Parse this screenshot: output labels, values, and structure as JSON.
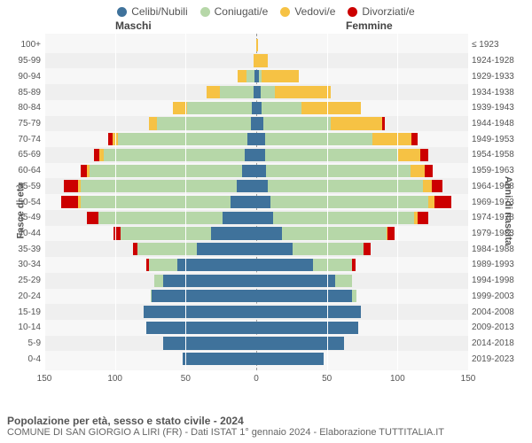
{
  "legend": {
    "items": [
      {
        "label": "Celibi/Nubili",
        "color": "#3f729b"
      },
      {
        "label": "Coniugati/e",
        "color": "#b6d7a8"
      },
      {
        "label": "Vedovi/e",
        "color": "#f6c244"
      },
      {
        "label": "Divorziati/e",
        "color": "#cc0000"
      }
    ]
  },
  "headers": {
    "male": "Maschi",
    "female": "Femmine"
  },
  "axis_labels": {
    "left": "Fasce di età",
    "right": "Anni di nascita"
  },
  "footer": {
    "title": "Popolazione per età, sesso e stato civile - 2024",
    "sub": "COMUNE DI SAN GIORGIO A LIRI (FR) - Dati ISTAT 1° gennaio 2024 - Elaborazione TUTTITALIA.IT"
  },
  "xaxis": {
    "max": 150,
    "ticks": [
      150,
      100,
      50,
      0,
      50,
      100,
      150
    ]
  },
  "colors": {
    "plot_bg": "#f7f7f7",
    "band_bg": "#efefef",
    "grid": "#ffffff",
    "centerline": "#999999",
    "text": "#555555"
  },
  "series_colors": {
    "single": "#3f729b",
    "married": "#b6d7a8",
    "widowed": "#f6c244",
    "divorced": "#cc0000"
  },
  "rows": [
    {
      "age": "100+",
      "year": "≤ 1923",
      "m": {
        "single": 0,
        "married": 0,
        "widowed": 0,
        "divorced": 0
      },
      "f": {
        "single": 0,
        "married": 0,
        "widowed": 1,
        "divorced": 0
      }
    },
    {
      "age": "95-99",
      "year": "1924-1928",
      "m": {
        "single": 0,
        "married": 0,
        "widowed": 2,
        "divorced": 0
      },
      "f": {
        "single": 0,
        "married": 0,
        "widowed": 8,
        "divorced": 0
      }
    },
    {
      "age": "90-94",
      "year": "1929-1933",
      "m": {
        "single": 1,
        "married": 6,
        "widowed": 6,
        "divorced": 0
      },
      "f": {
        "single": 2,
        "married": 2,
        "widowed": 26,
        "divorced": 0
      }
    },
    {
      "age": "85-89",
      "year": "1934-1938",
      "m": {
        "single": 2,
        "married": 24,
        "widowed": 9,
        "divorced": 0
      },
      "f": {
        "single": 3,
        "married": 10,
        "widowed": 40,
        "divorced": 0
      }
    },
    {
      "age": "80-84",
      "year": "1939-1943",
      "m": {
        "single": 3,
        "married": 46,
        "widowed": 10,
        "divorced": 0
      },
      "f": {
        "single": 4,
        "married": 28,
        "widowed": 42,
        "divorced": 0
      }
    },
    {
      "age": "75-79",
      "year": "1944-1948",
      "m": {
        "single": 4,
        "married": 66,
        "widowed": 6,
        "divorced": 0
      },
      "f": {
        "single": 5,
        "married": 48,
        "widowed": 36,
        "divorced": 2
      }
    },
    {
      "age": "70-74",
      "year": "1949-1953",
      "m": {
        "single": 6,
        "married": 92,
        "widowed": 4,
        "divorced": 3
      },
      "f": {
        "single": 6,
        "married": 76,
        "widowed": 28,
        "divorced": 4
      }
    },
    {
      "age": "65-69",
      "year": "1954-1958",
      "m": {
        "single": 8,
        "married": 100,
        "widowed": 3,
        "divorced": 4
      },
      "f": {
        "single": 6,
        "married": 94,
        "widowed": 16,
        "divorced": 6
      }
    },
    {
      "age": "60-64",
      "year": "1959-1963",
      "m": {
        "single": 10,
        "married": 108,
        "widowed": 2,
        "divorced": 4
      },
      "f": {
        "single": 7,
        "married": 102,
        "widowed": 10,
        "divorced": 6
      }
    },
    {
      "age": "55-59",
      "year": "1964-1968",
      "m": {
        "single": 14,
        "married": 110,
        "widowed": 2,
        "divorced": 10
      },
      "f": {
        "single": 8,
        "married": 110,
        "widowed": 6,
        "divorced": 8
      }
    },
    {
      "age": "50-54",
      "year": "1969-1973",
      "m": {
        "single": 18,
        "married": 106,
        "widowed": 2,
        "divorced": 12
      },
      "f": {
        "single": 10,
        "married": 112,
        "widowed": 4,
        "divorced": 12
      }
    },
    {
      "age": "45-49",
      "year": "1974-1978",
      "m": {
        "single": 24,
        "married": 88,
        "widowed": 0,
        "divorced": 8
      },
      "f": {
        "single": 12,
        "married": 100,
        "widowed": 2,
        "divorced": 8
      }
    },
    {
      "age": "40-44",
      "year": "1979-1983",
      "m": {
        "single": 32,
        "married": 64,
        "widowed": 0,
        "divorced": 5
      },
      "f": {
        "single": 18,
        "married": 74,
        "widowed": 1,
        "divorced": 5
      }
    },
    {
      "age": "35-39",
      "year": "1984-1988",
      "m": {
        "single": 42,
        "married": 42,
        "widowed": 0,
        "divorced": 3
      },
      "f": {
        "single": 26,
        "married": 50,
        "widowed": 0,
        "divorced": 5
      }
    },
    {
      "age": "30-34",
      "year": "1989-1993",
      "m": {
        "single": 56,
        "married": 20,
        "widowed": 0,
        "divorced": 2
      },
      "f": {
        "single": 40,
        "married": 28,
        "widowed": 0,
        "divorced": 2
      }
    },
    {
      "age": "25-29",
      "year": "1994-1998",
      "m": {
        "single": 66,
        "married": 6,
        "widowed": 0,
        "divorced": 0
      },
      "f": {
        "single": 56,
        "married": 12,
        "widowed": 0,
        "divorced": 0
      }
    },
    {
      "age": "20-24",
      "year": "1999-2003",
      "m": {
        "single": 74,
        "married": 1,
        "widowed": 0,
        "divorced": 0
      },
      "f": {
        "single": 68,
        "married": 3,
        "widowed": 0,
        "divorced": 0
      }
    },
    {
      "age": "15-19",
      "year": "2004-2008",
      "m": {
        "single": 80,
        "married": 0,
        "widowed": 0,
        "divorced": 0
      },
      "f": {
        "single": 74,
        "married": 0,
        "widowed": 0,
        "divorced": 0
      }
    },
    {
      "age": "10-14",
      "year": "2009-2013",
      "m": {
        "single": 78,
        "married": 0,
        "widowed": 0,
        "divorced": 0
      },
      "f": {
        "single": 72,
        "married": 0,
        "widowed": 0,
        "divorced": 0
      }
    },
    {
      "age": "5-9",
      "year": "2014-2018",
      "m": {
        "single": 66,
        "married": 0,
        "widowed": 0,
        "divorced": 0
      },
      "f": {
        "single": 62,
        "married": 0,
        "widowed": 0,
        "divorced": 0
      }
    },
    {
      "age": "0-4",
      "year": "2019-2023",
      "m": {
        "single": 52,
        "married": 0,
        "widowed": 0,
        "divorced": 0
      },
      "f": {
        "single": 48,
        "married": 0,
        "widowed": 0,
        "divorced": 0
      }
    }
  ]
}
